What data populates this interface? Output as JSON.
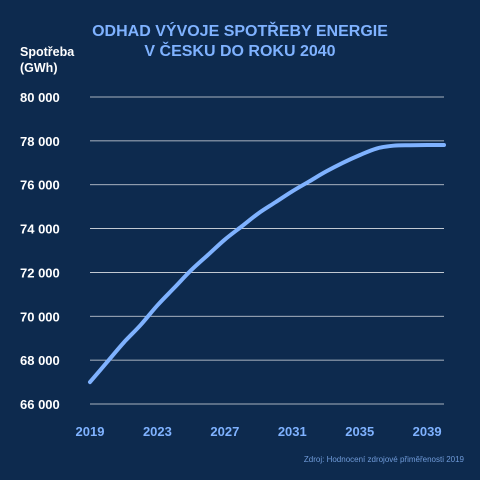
{
  "chart_data": {
    "type": "line",
    "title": [
      "ODHAD VÝVOJE SPOTŘEBY ENERGIE",
      "V ČESKU DO ROKU 2040"
    ],
    "ylabel": [
      "Spotřeba",
      "(GWh)"
    ],
    "xlabel": "",
    "source": "Zdroj: Hodnocení zdrojové přiměřenosti 2019",
    "xlim": [
      2019,
      2040
    ],
    "ylim": [
      66000,
      80000
    ],
    "x_ticks": [
      2019,
      2023,
      2027,
      2031,
      2035,
      2039
    ],
    "y_ticks": [
      66000,
      68000,
      70000,
      72000,
      74000,
      76000,
      78000,
      80000
    ],
    "y_tick_labels": [
      "66 000",
      "68 000",
      "70 000",
      "72 000",
      "74 000",
      "76 000",
      "78 000",
      "80 000"
    ],
    "grid": "horizontal",
    "series": [
      {
        "color": "#7fb2ff",
        "x": [
          2019,
          2020,
          2021,
          2022,
          2023,
          2024,
          2025,
          2026,
          2027,
          2028,
          2029,
          2030,
          2031,
          2032,
          2033,
          2034,
          2035,
          2036,
          2037,
          2038,
          2039,
          2040
        ],
        "y": [
          67000,
          67900,
          68800,
          69600,
          70500,
          71300,
          72100,
          72800,
          73500,
          74100,
          74700,
          75200,
          75700,
          76150,
          76600,
          77000,
          77350,
          77650,
          77780,
          77800,
          77810,
          77810
        ]
      }
    ]
  }
}
